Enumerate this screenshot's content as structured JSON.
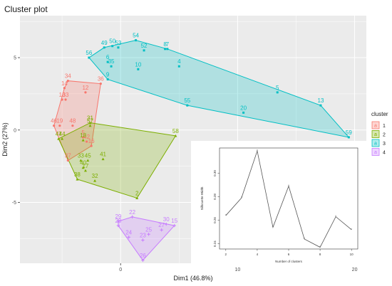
{
  "chart_data": [
    {
      "type": "scatter",
      "title": "Cluster plot",
      "xlabel": "Dim1 (46.8%)",
      "ylabel": "Dim2 (27%)",
      "xlim": [
        -8.6,
        21
      ],
      "ylim": [
        -9.2,
        7.9
      ],
      "x_ticks": [
        0,
        10,
        20
      ],
      "y_ticks": [
        5,
        0,
        -5
      ],
      "grid": true,
      "legend": {
        "title": "cluster",
        "position": "right",
        "entries": [
          "1",
          "2",
          "3",
          "4"
        ]
      },
      "colors": {
        "1": "#F8766D",
        "2": "#7CAE00",
        "3": "#00BFC4",
        "4": "#C77CFF"
      },
      "series": [
        {
          "name": "1",
          "points": [
            {
              "id": "34",
              "x": -4.5,
              "y": 3.4
            },
            {
              "id": "14",
              "x": -4.8,
              "y": 2.9
            },
            {
              "id": "12",
              "x": -3.0,
              "y": 2.6
            },
            {
              "id": "36",
              "x": -1.7,
              "y": 3.2
            },
            {
              "id": "13",
              "x": -5.0,
              "y": 2.1
            },
            {
              "id": "33",
              "x": -4.7,
              "y": 2.1
            },
            {
              "id": "46",
              "x": -5.7,
              "y": 0.3
            },
            {
              "id": "19",
              "x": -5.2,
              "y": 0.3
            },
            {
              "id": "48",
              "x": -4.1,
              "y": 0.3
            },
            {
              "id": "5",
              "x": -3.2,
              "y": -0.5
            },
            {
              "id": "42",
              "x": -2.9,
              "y": -0.8
            },
            {
              "id": "16",
              "x": -2.5,
              "y": -1.1
            },
            {
              "id": "37",
              "x": -4.5,
              "y": -2.1
            }
          ]
        },
        {
          "name": "2",
          "points": [
            {
              "id": "57",
              "x": -2.6,
              "y": 0.3
            },
            {
              "id": "31",
              "x": -2.6,
              "y": 0.5
            },
            {
              "id": "47",
              "x": -5.3,
              "y": -0.6
            },
            {
              "id": "44",
              "x": -5.0,
              "y": -0.6
            },
            {
              "id": "18",
              "x": -3.2,
              "y": -0.7
            },
            {
              "id": "58",
              "x": 4.7,
              "y": -0.4
            },
            {
              "id": "33",
              "x": -3.4,
              "y": -2.1
            },
            {
              "id": "45",
              "x": -2.8,
              "y": -2.1
            },
            {
              "id": "41",
              "x": -1.5,
              "y": -2.0
            },
            {
              "id": "40",
              "x": -3.2,
              "y": -2.6
            },
            {
              "id": "17",
              "x": -3.0,
              "y": -2.8
            },
            {
              "id": "38",
              "x": -3.7,
              "y": -3.4
            },
            {
              "id": "32",
              "x": -2.2,
              "y": -3.5
            },
            {
              "id": "2",
              "x": 1.4,
              "y": -4.7
            }
          ]
        },
        {
          "name": "3",
          "points": [
            {
              "id": "54",
              "x": 1.3,
              "y": 6.2
            },
            {
              "id": "49",
              "x": -1.4,
              "y": 5.7
            },
            {
              "id": "50",
              "x": -0.7,
              "y": 5.8
            },
            {
              "id": "53",
              "x": -0.2,
              "y": 5.7
            },
            {
              "id": "52",
              "x": 2.0,
              "y": 5.5
            },
            {
              "id": "8",
              "x": 3.8,
              "y": 5.6
            },
            {
              "id": "7",
              "x": 4.0,
              "y": 5.6
            },
            {
              "id": "56",
              "x": -2.7,
              "y": 5.0
            },
            {
              "id": "6",
              "x": -1.1,
              "y": 4.7
            },
            {
              "id": "35",
              "x": -0.8,
              "y": 4.4
            },
            {
              "id": "10",
              "x": 1.5,
              "y": 4.2
            },
            {
              "id": "4",
              "x": 5.0,
              "y": 4.4
            },
            {
              "id": "9",
              "x": -1.1,
              "y": 3.5
            },
            {
              "id": "55",
              "x": 5.7,
              "y": 1.7
            },
            {
              "id": "5",
              "x": 13.4,
              "y": 2.6
            },
            {
              "id": "20",
              "x": 10.5,
              "y": 1.2
            },
            {
              "id": "13",
              "x": 17.1,
              "y": 1.7
            },
            {
              "id": "59",
              "x": 19.5,
              "y": -0.5
            }
          ]
        },
        {
          "name": "4",
          "points": [
            {
              "id": "22",
              "x": 1.0,
              "y": -6.0
            },
            {
              "id": "29",
              "x": -0.2,
              "y": -6.3
            },
            {
              "id": "28",
              "x": -0.2,
              "y": -6.6
            },
            {
              "id": "30",
              "x": 3.9,
              "y": -6.5
            },
            {
              "id": "15",
              "x": 4.6,
              "y": -6.6
            },
            {
              "id": "27",
              "x": 3.5,
              "y": -6.9
            },
            {
              "id": "24",
              "x": 0.7,
              "y": -7.4
            },
            {
              "id": "25",
              "x": 2.4,
              "y": -7.2
            },
            {
              "id": "23",
              "x": 1.9,
              "y": -7.6
            },
            {
              "id": "26",
              "x": 1.9,
              "y": -9.0
            }
          ]
        }
      ]
    },
    {
      "type": "line",
      "title": "",
      "xlabel": "Number of clusters",
      "ylabel": "Silhouette Width",
      "x": [
        2,
        3,
        4,
        5,
        6,
        7,
        8,
        9,
        10
      ],
      "values": [
        0.264,
        0.279,
        0.319,
        0.254,
        0.289,
        0.244,
        0.237,
        0.263,
        0.252
      ],
      "xlim": [
        1.6,
        10.4
      ],
      "ylim": [
        0.2355,
        0.3215
      ],
      "x_ticks": [
        "2",
        "4",
        "6",
        "8",
        "10"
      ],
      "y_ticks": [
        "0.24",
        "0.26",
        "0.28",
        "0.30"
      ]
    }
  ]
}
